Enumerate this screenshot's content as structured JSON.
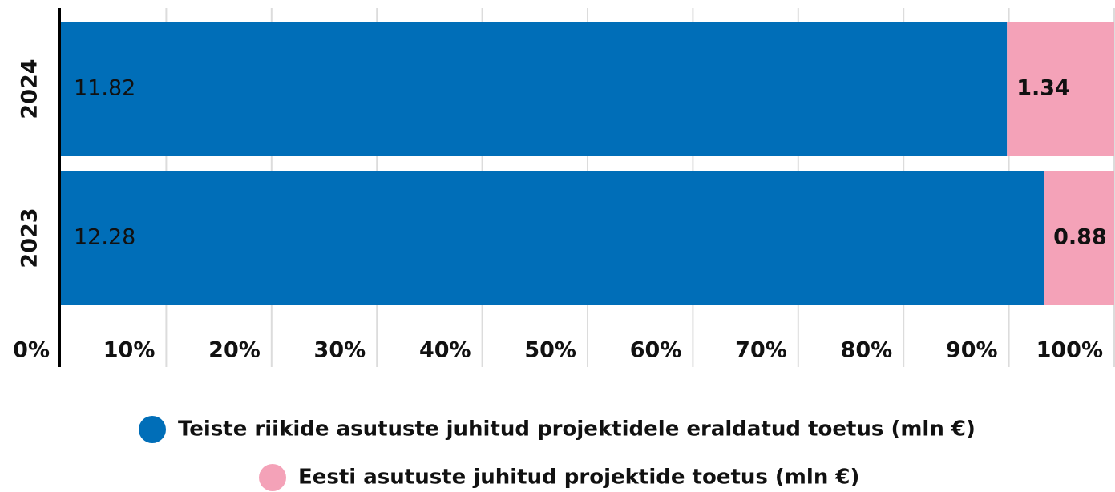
{
  "chart_data": {
    "type": "stacked_bar_percent",
    "categories": [
      "2024",
      "2023"
    ],
    "series": [
      {
        "name": "Teiste riikide asutuste juhitud projektidele eraldatud toetus (mln €)",
        "color": "#006eb8",
        "values": [
          11.82,
          12.28
        ]
      },
      {
        "name": "Eesti asutuste juhitud projektide toetus (mln €)",
        "color": "#f4a2b8",
        "values": [
          1.34,
          0.88
        ]
      }
    ],
    "xlim": [
      0,
      100
    ],
    "xticks": [
      {
        "value": 0,
        "label": "0%"
      },
      {
        "value": 10,
        "label": "10%"
      },
      {
        "value": 20,
        "label": "20%"
      },
      {
        "value": 30,
        "label": "30%"
      },
      {
        "value": 40,
        "label": "40%"
      },
      {
        "value": 50,
        "label": "50%"
      },
      {
        "value": 60,
        "label": "60%"
      },
      {
        "value": 70,
        "label": "70%"
      },
      {
        "value": 80,
        "label": "80%"
      },
      {
        "value": 90,
        "label": "90%"
      },
      {
        "value": 100,
        "label": "100%"
      }
    ],
    "grid": true
  }
}
